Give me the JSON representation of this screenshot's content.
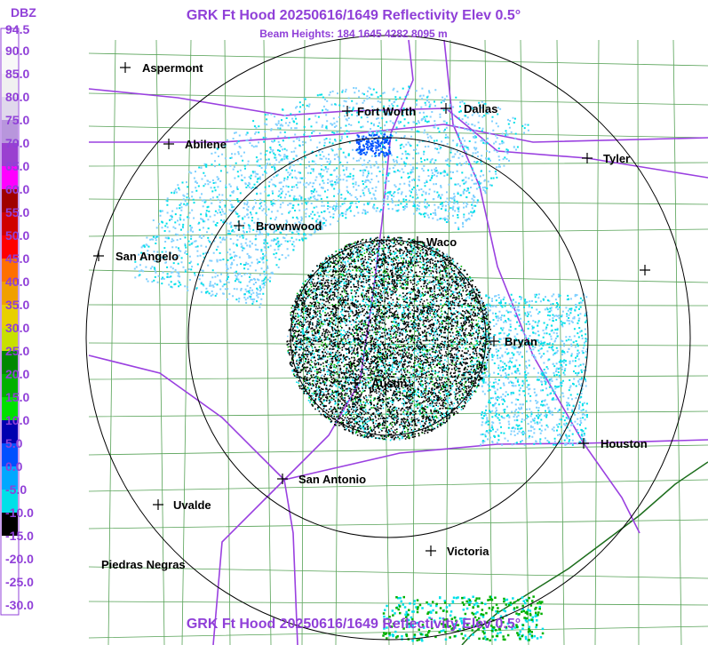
{
  "header": {
    "title": "GRK Ft Hood 20250616/1649 Reflectivity Elev 0.5°",
    "subtitle": "Beam Heights: 184 1645 4282 8095 m",
    "footer_title": "GRK Ft Hood 20250616/1649 Reflectivity Elev 0.5°"
  },
  "legend": {
    "title": "DBZ",
    "labels": [
      "94.5",
      "90.0",
      "85.0",
      "80.0",
      "75.0",
      "70.0",
      "65.0",
      "60.0",
      "55.0",
      "50.0",
      "45.0",
      "40.0",
      "35.0",
      "30.0",
      "25.0",
      "20.0",
      "15.0",
      "10.0",
      "5.0",
      "0.0",
      "-5.0",
      "-10.0",
      "-15.0",
      "-20.0",
      "-25.0",
      "-30.0"
    ],
    "colors": [
      "#ffffff",
      "#f8f8f8",
      "#f0f0f0",
      "#e0d8ec",
      "#b896dc",
      "#9a40d0",
      "#ff00ff",
      "#a00000",
      "#d00000",
      "#ff0000",
      "#ff7000",
      "#f0a000",
      "#e8d000",
      "#c8e000",
      "#008800",
      "#00b000",
      "#00e000",
      "#0000b0",
      "#0050ff",
      "#00a8ff",
      "#00e0e8",
      "#000000",
      "#ffffff",
      "#ffffff",
      "#ffffff",
      "#ffffff"
    ]
  },
  "cities": [
    {
      "name": "Aspermont"
    },
    {
      "name": "Abilene"
    },
    {
      "name": "Fort Worth"
    },
    {
      "name": "Dallas"
    },
    {
      "name": "Tyler"
    },
    {
      "name": "Brownwood"
    },
    {
      "name": "Waco"
    },
    {
      "name": "San Angelo"
    },
    {
      "name": "Bryan"
    },
    {
      "name": "Austin"
    },
    {
      "name": "Houston"
    },
    {
      "name": "San Antonio"
    },
    {
      "name": "Uvalde"
    },
    {
      "name": "Victoria"
    },
    {
      "name": "Piedras Negras"
    }
  ]
}
